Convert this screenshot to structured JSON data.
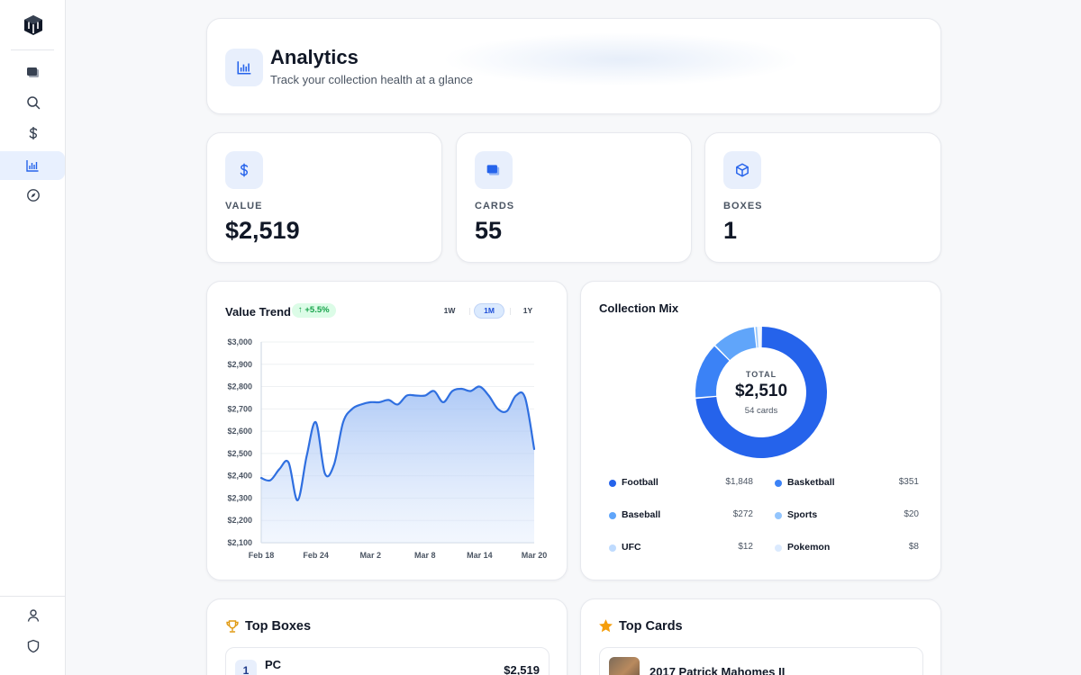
{
  "sidebar": {
    "items": [
      {
        "name": "cards",
        "icon": "stacked-cards-icon"
      },
      {
        "name": "search",
        "icon": "search-icon"
      },
      {
        "name": "dollar",
        "icon": "dollar-icon"
      },
      {
        "name": "analytics",
        "icon": "bar-chart-icon",
        "active": true
      },
      {
        "name": "explore",
        "icon": "compass-icon"
      }
    ],
    "bottom_items": [
      {
        "name": "profile",
        "icon": "user-icon"
      },
      {
        "name": "security",
        "icon": "shield-icon"
      }
    ]
  },
  "header": {
    "title": "Analytics",
    "subtitle": "Track your collection health at a glance"
  },
  "stats": [
    {
      "label": "VALUE",
      "value": "$2,519",
      "icon": "dollar-icon"
    },
    {
      "label": "CARDS",
      "value": "55",
      "icon": "stacked-cards-icon"
    },
    {
      "label": "BOXES",
      "value": "1",
      "icon": "cube-icon"
    }
  ],
  "trend": {
    "title": "Value Trend",
    "badge": "↑ +5.5%",
    "ranges": [
      "1W",
      "1M",
      "1Y"
    ],
    "selected_range": "1M"
  },
  "mix": {
    "title": "Collection Mix",
    "total_label": "TOTAL",
    "total_value": "$2,510",
    "total_sub": "54 cards",
    "legend": [
      {
        "name": "Football",
        "value": "$1,848",
        "color": "#2563eb"
      },
      {
        "name": "Basketball",
        "value": "$351",
        "color": "#3b82f6"
      },
      {
        "name": "Baseball",
        "value": "$272",
        "color": "#60a5fa"
      },
      {
        "name": "Sports",
        "value": "$20",
        "color": "#93c5fd"
      },
      {
        "name": "UFC",
        "value": "$12",
        "color": "#bfdbfe"
      },
      {
        "name": "Pokemon",
        "value": "$8",
        "color": "#dbeafe"
      }
    ]
  },
  "top_boxes": {
    "title": "Top Boxes",
    "items": [
      {
        "rank": "1",
        "name": "PC",
        "value": "$2,519"
      }
    ]
  },
  "top_cards": {
    "title": "Top Cards",
    "items": [
      {
        "name": "2017 Patrick Mahomes II"
      }
    ]
  },
  "chart_data": [
    {
      "type": "line",
      "title": "Value Trend",
      "x_ticks": [
        "Feb 18",
        "Feb 24",
        "Mar 2",
        "Mar 8",
        "Mar 14",
        "Mar 20"
      ],
      "y_ticks": [
        "$3,000",
        "$2,900",
        "$2,800",
        "$2,700",
        "$2,600",
        "$2,500",
        "$2,400",
        "$2,300",
        "$2,200",
        "$2,100"
      ],
      "ylim": [
        2100,
        3000
      ],
      "x": [
        "Feb 18",
        "Feb 19",
        "Feb 20",
        "Feb 21",
        "Feb 22",
        "Feb 23",
        "Feb 24",
        "Feb 25",
        "Feb 26",
        "Feb 27",
        "Feb 28",
        "Mar 1",
        "Mar 2",
        "Mar 3",
        "Mar 4",
        "Mar 5",
        "Mar 6",
        "Mar 7",
        "Mar 8",
        "Mar 9",
        "Mar 10",
        "Mar 11",
        "Mar 12",
        "Mar 13",
        "Mar 14",
        "Mar 15",
        "Mar 16",
        "Mar 17",
        "Mar 18",
        "Mar 19",
        "Mar 20"
      ],
      "values": [
        2390,
        2380,
        2430,
        2460,
        2290,
        2490,
        2640,
        2410,
        2450,
        2640,
        2700,
        2720,
        2730,
        2730,
        2740,
        2720,
        2760,
        2760,
        2760,
        2780,
        2730,
        2780,
        2790,
        2780,
        2800,
        2760,
        2700,
        2690,
        2760,
        2750,
        2520
      ],
      "grid": true
    },
    {
      "type": "pie",
      "title": "Collection Mix",
      "categories": [
        "Football",
        "Basketball",
        "Baseball",
        "Sports",
        "UFC",
        "Pokemon"
      ],
      "values": [
        1848,
        351,
        272,
        20,
        12,
        8
      ]
    }
  ]
}
